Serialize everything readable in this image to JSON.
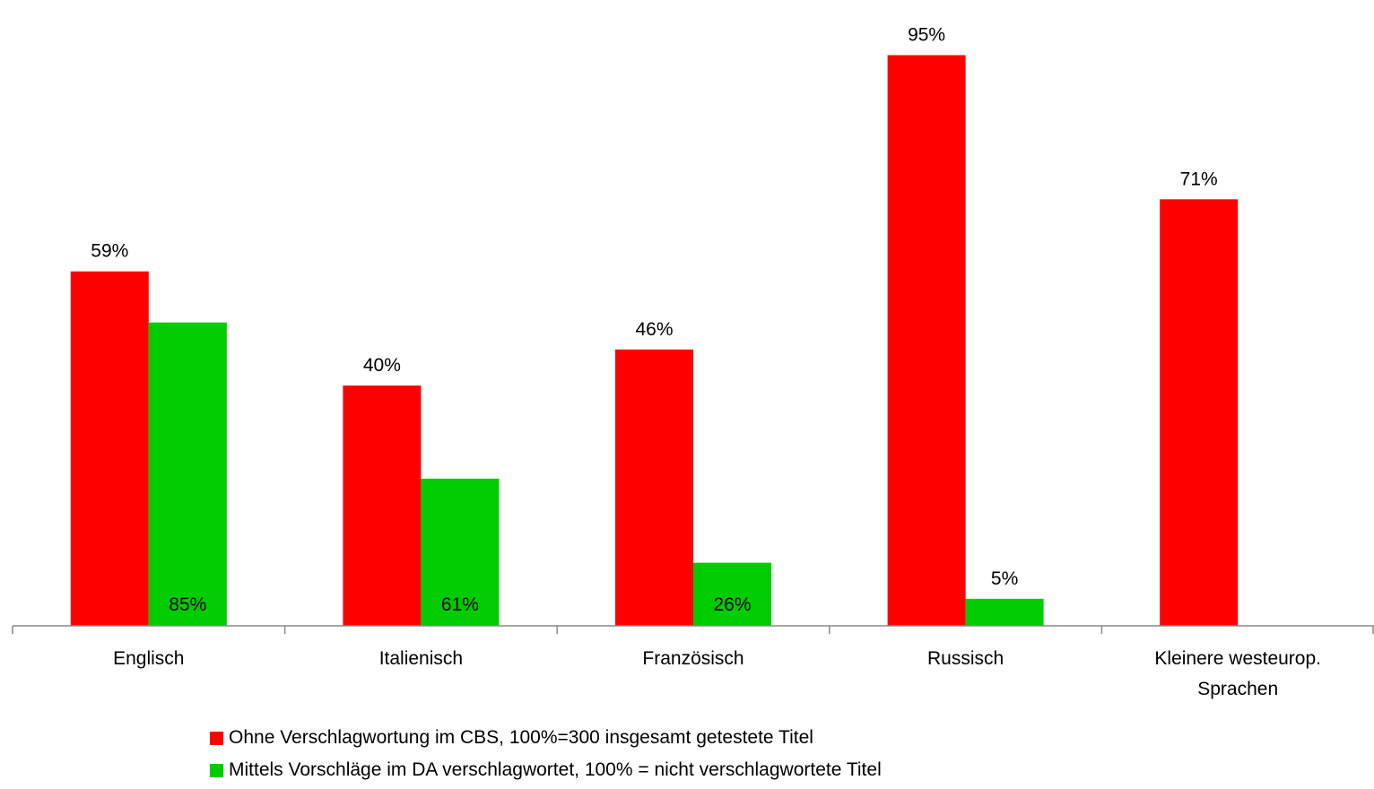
{
  "chart_data": {
    "type": "bar",
    "categories": [
      "Englisch",
      "Italienisch",
      "Französisch",
      "Russisch",
      "Kleinere westeurop. Sprachen"
    ],
    "series": [
      {
        "name": "Ohne Verschlagwortung im CBS, 100%=300 insgesamt getestete Titel",
        "color": "#ff0000",
        "values": [
          59,
          40,
          46,
          95,
          71
        ],
        "labels": [
          "59%",
          "40%",
          "46%",
          "95%",
          "71%"
        ]
      },
      {
        "name": "Mittels Vorschläge im DA verschlagwortet, 100% = nicht verschlagwortete Titel",
        "color": "#00cc00",
        "values": [
          50.5,
          24.5,
          10.5,
          4.5,
          null
        ],
        "labels": [
          "85%",
          "61%",
          "26%",
          "5%",
          ""
        ]
      }
    ],
    "ylim": [
      0,
      100
    ],
    "grid": false,
    "legend_position": "bottom"
  }
}
